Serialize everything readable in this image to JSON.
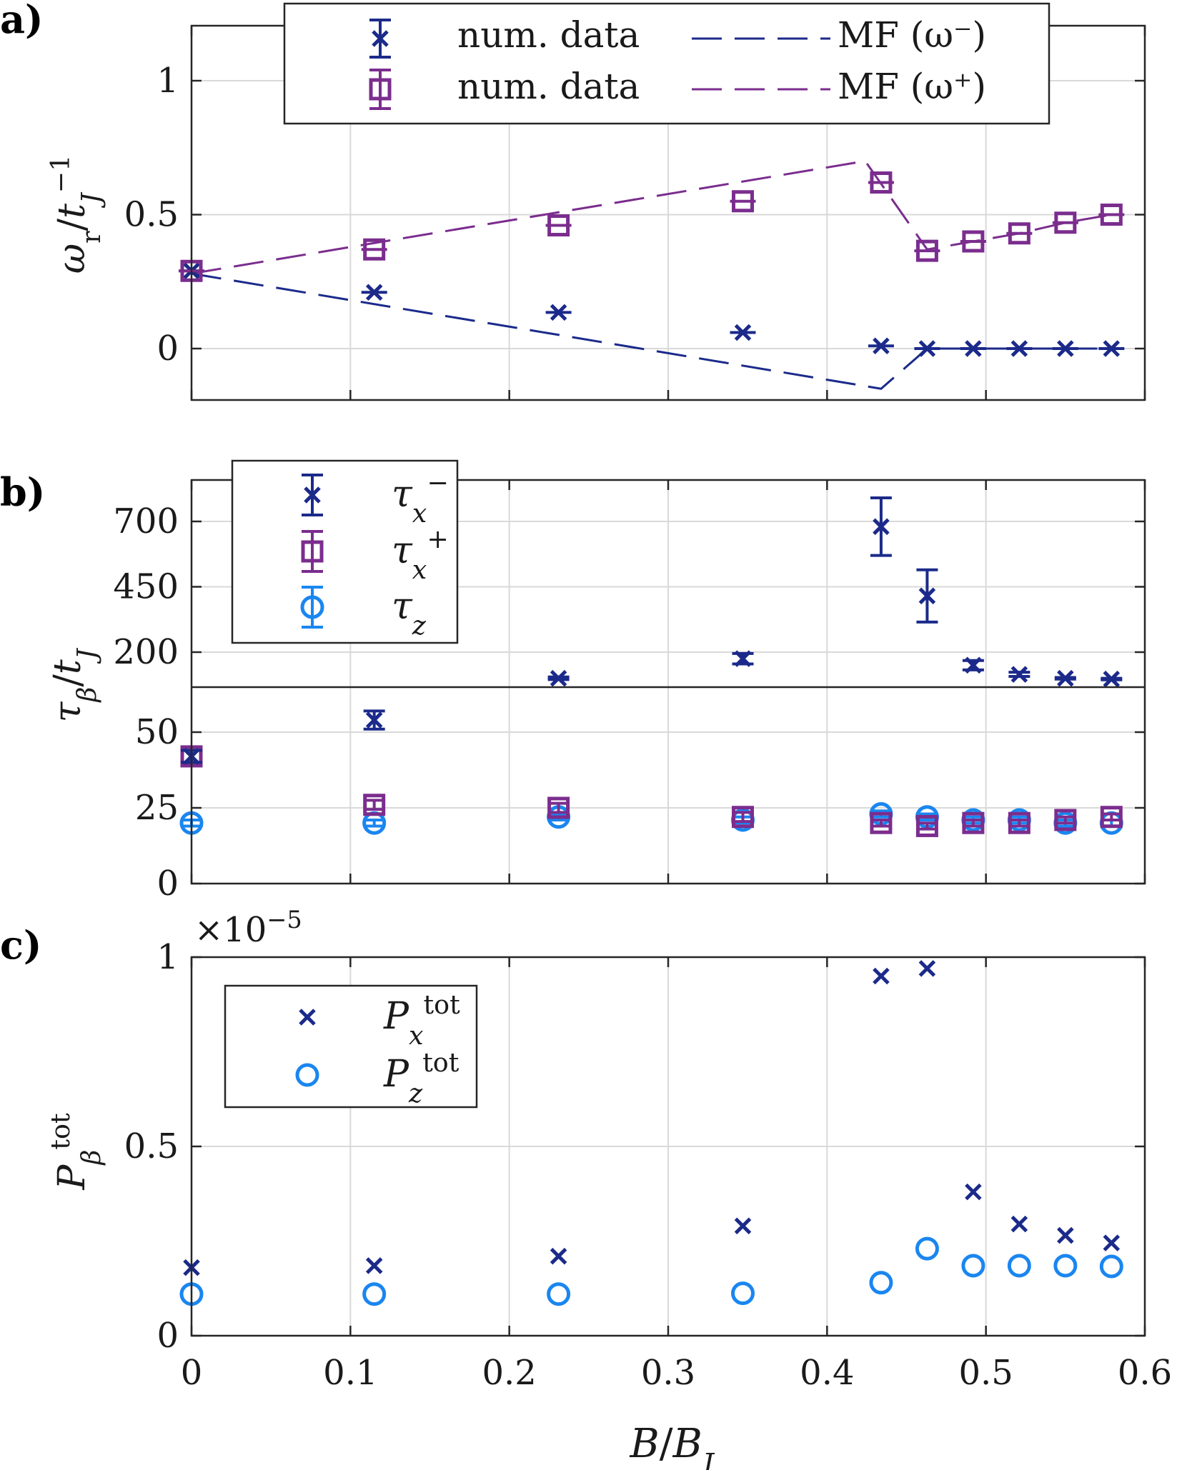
{
  "colors": {
    "navy": "#1b2a8a",
    "purple": "#7b2d8e",
    "sky": "#1a86f0",
    "grid": "#d9d9d9",
    "axis": "#262626"
  },
  "xlabel": "B/B_J",
  "x_ticks": [
    "0",
    "0.1",
    "0.2",
    "0.3",
    "0.4",
    "0.5",
    "0.6"
  ],
  "chart_data": [
    {
      "panel_label": "a)",
      "type": "line",
      "ylabel": "ω_r/t_J^{-1}",
      "xlim": [
        0,
        0.6
      ],
      "ylim": [
        -0.2,
        1.2
      ],
      "y_ticks": [
        0,
        0.5,
        1
      ],
      "y_tick_labels": [
        "0",
        "0.5",
        "1"
      ],
      "legend_entries": [
        "num. data",
        "num. data",
        "MF (ω⁻)",
        "MF (ω⁺)"
      ],
      "x": [
        0,
        0.115,
        0.231,
        0.347,
        0.434,
        0.463,
        0.492,
        0.521,
        0.55,
        0.579
      ],
      "series": [
        {
          "name": "num. data",
          "mode": "x",
          "color_key": "navy",
          "values": [
            0.29,
            0.21,
            0.135,
            0.06,
            0.01,
            0.0,
            0.0,
            0.0,
            0.0,
            0.0
          ]
        },
        {
          "name": "num. data",
          "mode": "square",
          "color_key": "purple",
          "values": [
            0.29,
            0.37,
            0.46,
            0.55,
            0.62,
            0.365,
            0.4,
            0.43,
            0.47,
            0.5
          ]
        },
        {
          "name": "MF (ω⁻)",
          "mode": "dashed",
          "color_key": "navy",
          "x": [
            0,
            0.434,
            0.463,
            0.492,
            0.521,
            0.55,
            0.579
          ],
          "values": [
            0.28,
            -0.15,
            0.0,
            0.0,
            0.0,
            0.0,
            0.0
          ]
        },
        {
          "name": "MF (ω⁺)",
          "mode": "dashed",
          "color_key": "purple",
          "x": [
            0,
            0.424,
            0.463,
            0.492,
            0.521,
            0.55,
            0.579
          ],
          "values": [
            0.28,
            0.7,
            0.37,
            0.4,
            0.43,
            0.47,
            0.5
          ]
        }
      ]
    },
    {
      "panel_label": "b)",
      "type": "scatter",
      "ylabel": "τ_β/t_J",
      "xlim": [
        0,
        0.6
      ],
      "upper_ylim": [
        90,
        860
      ],
      "upper_y_ticks": [
        200,
        450,
        700
      ],
      "lower_ylim": [
        0,
        70
      ],
      "lower_y_ticks": [
        0,
        25,
        50
      ],
      "legend_entries": [
        "τ_x⁻",
        "τ_x⁺",
        "τ_z"
      ],
      "x": [
        0,
        0.115,
        0.231,
        0.347,
        0.434,
        0.463,
        0.492,
        0.521,
        0.55,
        0.579
      ],
      "series": [
        {
          "name": "τ_x⁻",
          "mode": "x",
          "color_key": "navy",
          "values": [
            42,
            54,
            100,
            175,
            680,
            415,
            150,
            115,
            100,
            97
          ],
          "err": [
            2,
            3,
            5,
            20,
            110,
            100,
            18,
            8,
            3,
            3
          ]
        },
        {
          "name": "τ_x⁺",
          "mode": "square",
          "color_key": "purple",
          "values": [
            42,
            26,
            25,
            22,
            20,
            19,
            20,
            20,
            21,
            22
          ],
          "err": [
            2,
            1.5,
            1.5,
            1.5,
            1,
            1,
            1,
            1,
            1,
            1
          ]
        },
        {
          "name": "τ_z",
          "mode": "circle",
          "color_key": "sky",
          "values": [
            20,
            20,
            22,
            21,
            23,
            22,
            21,
            21,
            20,
            20
          ],
          "err": [
            1,
            1,
            1,
            1,
            1,
            1,
            1,
            1,
            1,
            1
          ]
        }
      ]
    },
    {
      "panel_label": "c)",
      "type": "scatter",
      "ylabel": "P_β^{tot}",
      "multiplier": "×10^{-5}",
      "xlim": [
        0,
        0.6
      ],
      "ylim": [
        0,
        1
      ],
      "y_ticks": [
        0,
        0.5,
        1
      ],
      "y_tick_labels": [
        "0",
        "0.5",
        "1"
      ],
      "legend_entries": [
        "P_x^{tot}",
        "P_z^{tot}"
      ],
      "x": [
        0,
        0.115,
        0.231,
        0.347,
        0.434,
        0.463,
        0.492,
        0.521,
        0.55,
        0.579
      ],
      "series": [
        {
          "name": "P_x^{tot}",
          "mode": "x",
          "color_key": "navy",
          "values": [
            0.18,
            0.185,
            0.21,
            0.29,
            0.95,
            0.97,
            0.38,
            0.295,
            0.265,
            0.245
          ]
        },
        {
          "name": "P_z^{tot}",
          "mode": "circle",
          "color_key": "sky",
          "values": [
            0.11,
            0.11,
            0.11,
            0.112,
            0.14,
            0.23,
            0.185,
            0.185,
            0.185,
            0.183
          ]
        }
      ]
    }
  ]
}
